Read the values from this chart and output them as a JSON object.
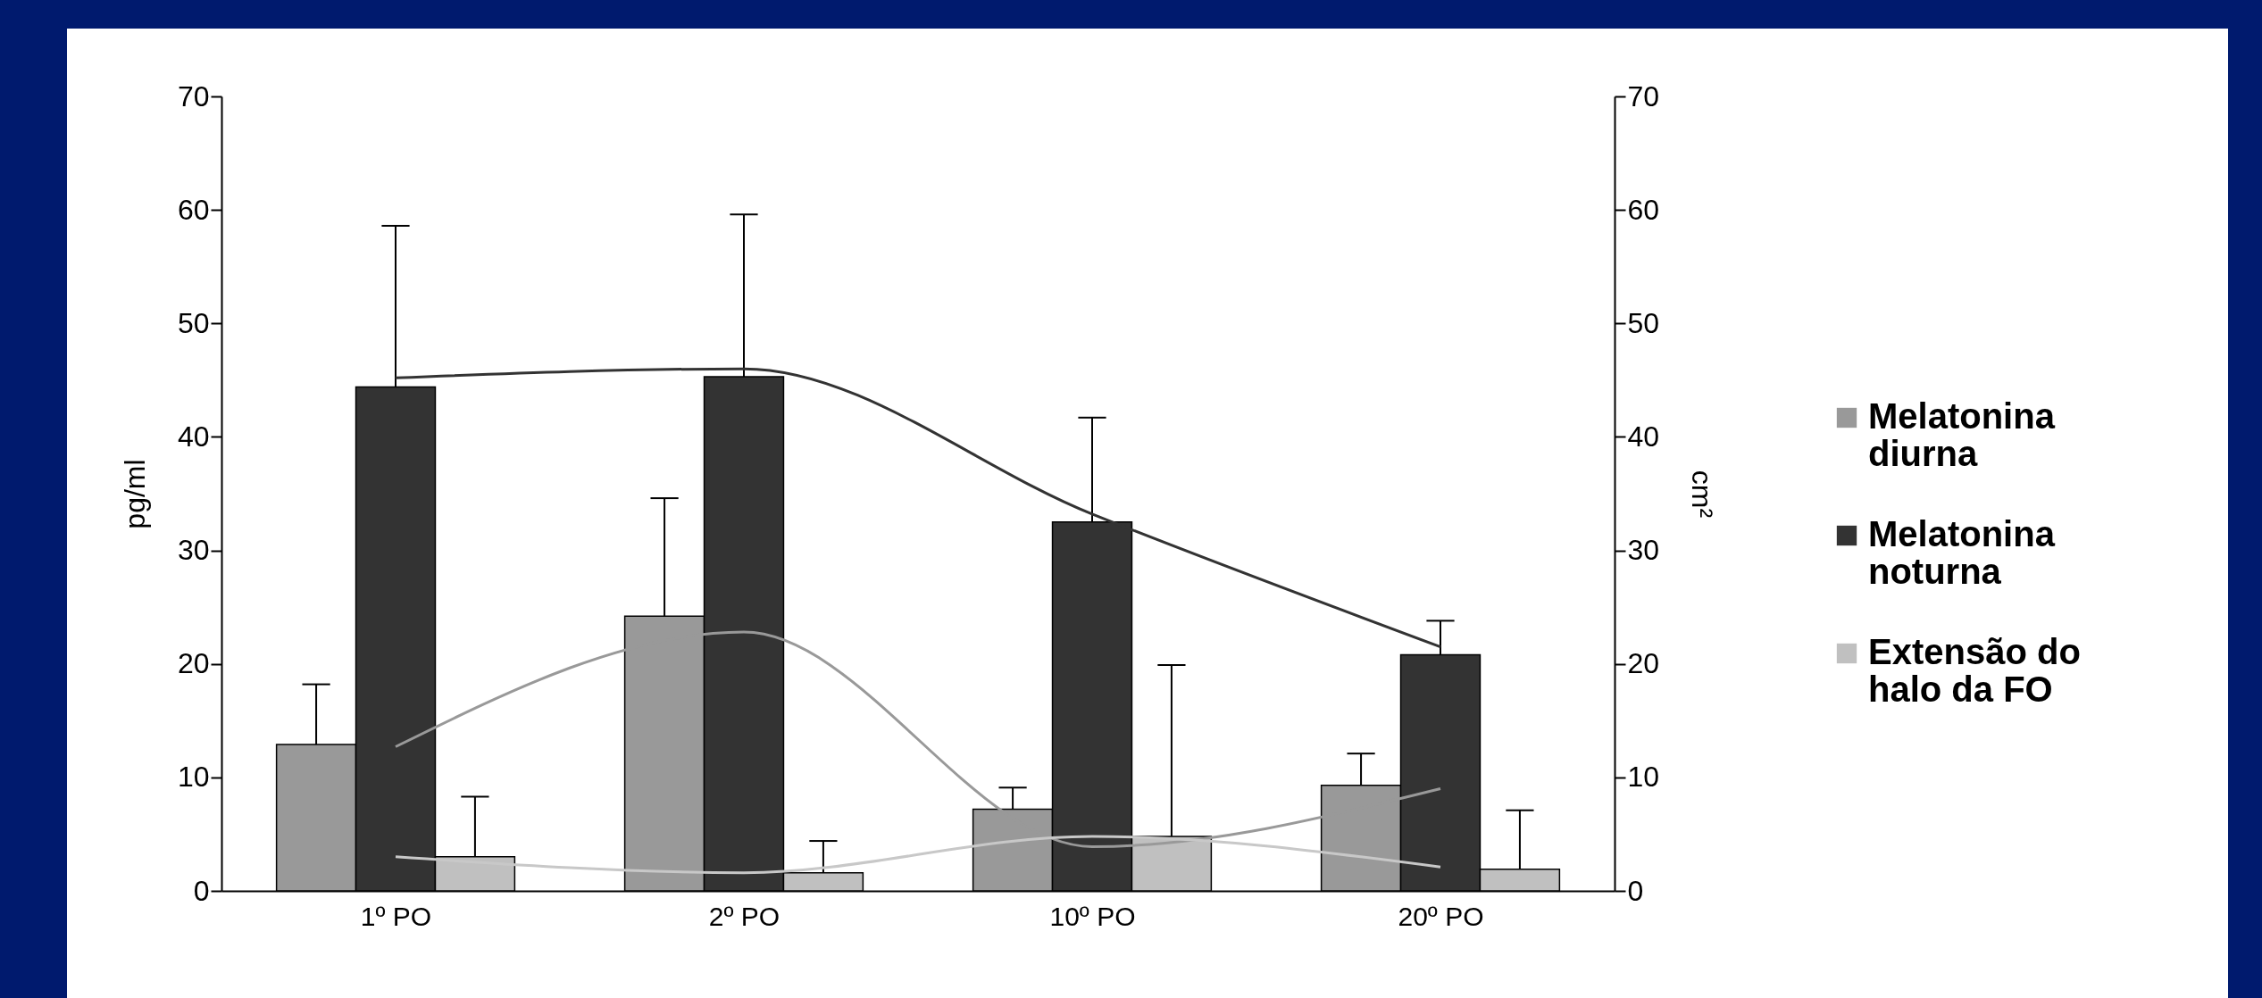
{
  "chart_data": {
    "type": "bar",
    "categories": [
      "1º PO",
      "2º PO",
      "10º PO",
      "20º PO"
    ],
    "ylabel": "pg/ml",
    "y2label": "cm²",
    "ylim": [
      0,
      70
    ],
    "yticks": [
      0,
      10,
      20,
      30,
      40,
      50,
      60,
      70
    ],
    "y2lim": [
      0,
      70
    ],
    "y2ticks": [
      0,
      10,
      20,
      30,
      40,
      50,
      60,
      70
    ],
    "grid": false,
    "legend": "right",
    "series": [
      {
        "name": "Melatonina diurna",
        "color": "#999999",
        "values": [
          12.9,
          24.2,
          7.2,
          9.3
        ],
        "errors": [
          [
            12.9,
            18.2
          ],
          [
            24.2,
            34.6
          ],
          [
            7.2,
            9.1
          ],
          [
            9.3,
            12.1
          ]
        ]
      },
      {
        "name": "Melatonina noturna",
        "color": "#333333",
        "values": [
          44.4,
          45.3,
          32.5,
          20.8
        ],
        "errors": [
          [
            44.4,
            58.6
          ],
          [
            45.3,
            59.6
          ],
          [
            32.5,
            41.7
          ],
          [
            20.8,
            23.8
          ]
        ]
      },
      {
        "name": "Extensão do halo da FO",
        "color": "#c0c0c0",
        "values": [
          3.0,
          1.6,
          4.8,
          1.9
        ],
        "errors": [
          [
            3.0,
            8.3
          ],
          [
            1.6,
            4.4
          ],
          [
            4.8,
            19.9
          ],
          [
            1.9,
            7.1
          ]
        ]
      },
      {
        "type": "line",
        "color": "#333333",
        "values": [
          45.2,
          46.0,
          33.2,
          21.5
        ]
      },
      {
        "type": "line",
        "color": "#999999",
        "values": [
          12.7,
          22.8,
          3.9,
          9.0
        ]
      },
      {
        "type": "line",
        "color": "#c8c8c8",
        "values": [
          3.0,
          1.6,
          4.8,
          2.1
        ]
      }
    ]
  }
}
